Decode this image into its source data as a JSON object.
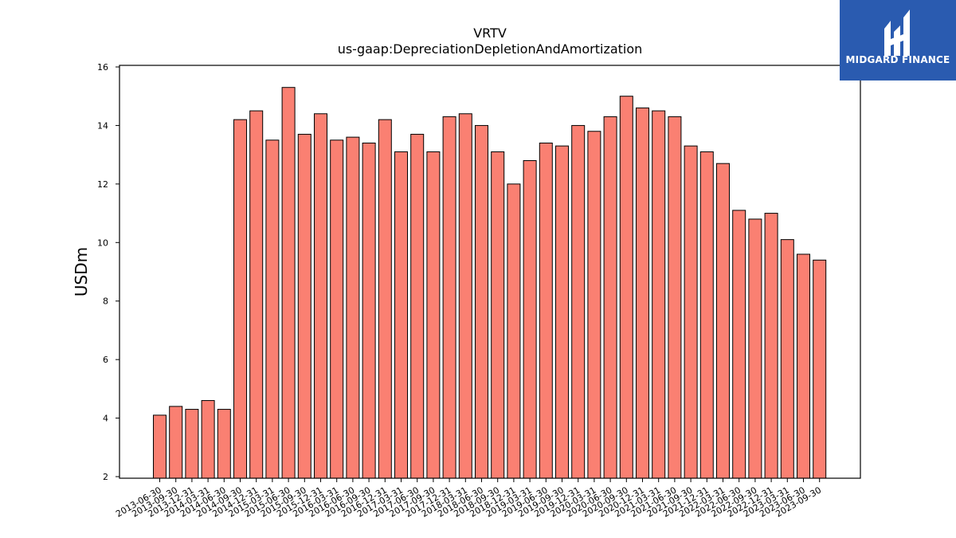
{
  "chart_data": {
    "type": "bar",
    "title": "VRTV",
    "subtitle": "us-gaap:DepreciationDepletionAndAmortization",
    "xlabel": "",
    "ylabel": "USDm",
    "ylim": [
      2,
      16
    ],
    "yticks": [
      2,
      4,
      6,
      8,
      10,
      12,
      14,
      16
    ],
    "grid": false,
    "bar_color": "#fa8072",
    "edge_color": "#000000",
    "categories": [
      "2013-06-30",
      "2013-09-30",
      "2013-12-31",
      "2014-03-31",
      "2014-06-30",
      "2014-09-30",
      "2014-12-31",
      "2015-03-31",
      "2015-06-30",
      "2015-09-30",
      "2015-12-31",
      "2016-03-31",
      "2016-06-30",
      "2016-09-30",
      "2016-12-31",
      "2017-03-31",
      "2017-06-30",
      "2017-09-30",
      "2017-12-31",
      "2018-03-31",
      "2018-06-30",
      "2018-09-30",
      "2018-12-31",
      "2019-03-31",
      "2019-06-30",
      "2019-09-30",
      "2019-12-31",
      "2020-03-31",
      "2020-06-30",
      "2020-09-30",
      "2020-12-31",
      "2021-03-31",
      "2021-06-30",
      "2021-09-30",
      "2021-12-31",
      "2022-03-31",
      "2022-06-30",
      "2022-09-30",
      "2022-12-31",
      "2023-03-31",
      "2023-06-30",
      "2023-09-30"
    ],
    "values": [
      4.1,
      4.4,
      4.3,
      4.6,
      4.3,
      14.2,
      14.5,
      13.5,
      15.3,
      13.7,
      14.4,
      13.5,
      13.6,
      13.4,
      14.2,
      13.1,
      13.7,
      13.1,
      14.3,
      14.4,
      14.0,
      13.1,
      12.0,
      12.8,
      13.4,
      13.3,
      14.0,
      13.8,
      14.3,
      15.0,
      14.6,
      14.5,
      14.3,
      13.3,
      13.1,
      12.7,
      11.1,
      10.8,
      11.0,
      10.1,
      9.6,
      9.4
    ]
  },
  "logo": {
    "text": "MIDGARD FINANCE",
    "icon": "midgard-logo-icon",
    "background": "#2a5bb0"
  }
}
